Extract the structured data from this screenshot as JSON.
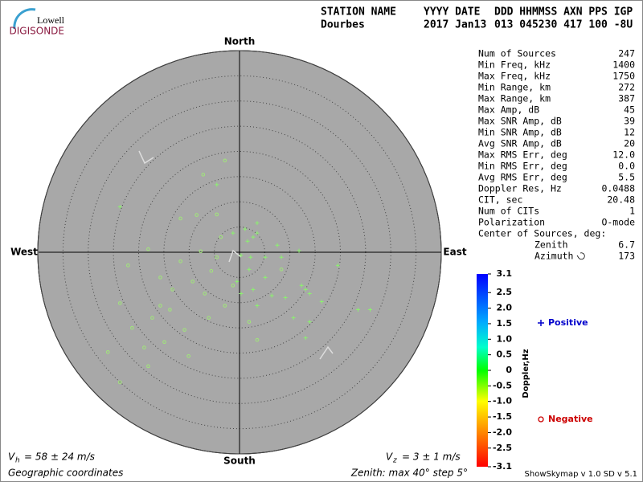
{
  "logo": {
    "top": "Lowell",
    "bottom": "DIGISONDE"
  },
  "header": {
    "labels": [
      "STATION NAME",
      "YYYY DATE",
      "DDD HHMMSS AXN PPS IGP"
    ],
    "values": [
      "Dourbes",
      "2017 Jan13",
      "013 045230 417 100 -8U"
    ]
  },
  "stats": {
    "rows": [
      [
        "Num of Sources",
        "247"
      ],
      [
        "Min Freq, kHz",
        "1400"
      ],
      [
        "Max Freq, kHz",
        "1750"
      ],
      [
        "Min Range, km",
        "272"
      ],
      [
        "Max Range, km",
        "387"
      ],
      [
        "Max Amp, dB",
        "45"
      ],
      [
        "Max SNR Amp, dB",
        "39"
      ],
      [
        "Min SNR Amp, dB",
        "12"
      ],
      [
        "Avg SNR Amp, dB",
        "20"
      ],
      [
        "Max RMS Err, deg",
        "12.0"
      ],
      [
        "Min RMS Err, deg",
        "0.0"
      ],
      [
        "Avg RMS Err, deg",
        "5.5"
      ],
      [
        "Doppler Res, Hz",
        "0.0488"
      ],
      [
        "CIT, sec",
        "20.48"
      ],
      [
        "Num of CITs",
        "1"
      ],
      [
        "Polarization",
        "O-mode"
      ]
    ],
    "center_title": "Center of Sources, deg:",
    "center": [
      [
        "Zenith",
        "6.7"
      ],
      [
        "Azimuth",
        "173"
      ]
    ]
  },
  "chart_data": {
    "type": "skymap",
    "directions": {
      "north": "North",
      "south": "South",
      "east": "East",
      "west": "West"
    },
    "rlim": [
      0,
      40
    ],
    "rticks": [
      5,
      10,
      15,
      20,
      25,
      30,
      35,
      40
    ],
    "series": [
      {
        "name": "Positive",
        "marker": "+",
        "color": "#8cf070",
        "label_color": "#0000cc",
        "x": [
          2.2,
          2.7,
          3.5,
          1.1,
          5.1,
          7.5,
          8.3,
          11.8,
          12.3,
          13.1,
          13.9,
          16.3,
          19.5,
          23.5,
          25.9,
          13.1,
          0.3,
          -0.5,
          1.9,
          2.7,
          3.5,
          6.4,
          9.1,
          -4.5,
          -23.7,
          3.5,
          1.6,
          0.3,
          -1.3,
          10.7,
          13.9,
          5.1
        ],
        "y": [
          -1.0,
          3.0,
          3.8,
          4.6,
          -1.0,
          1.4,
          -1.0,
          0.3,
          -6.6,
          -7.4,
          -8.2,
          -9.8,
          -2.6,
          -11.4,
          -11.4,
          -17.0,
          -8.2,
          -5.8,
          -3.4,
          -7.4,
          -10.6,
          -8.6,
          -9.0,
          13.4,
          9.0,
          5.8,
          2.2,
          -0.6,
          3.8,
          -13.0,
          -13.8,
          -5.0
        ]
      },
      {
        "name": "Negative",
        "marker": "o",
        "color": "#a0e878",
        "label_color": "#cc0000",
        "x": [
          -2.9,
          -7.2,
          -4.5,
          -8.5,
          -11.7,
          -18.1,
          -22.1,
          -15.7,
          -13.3,
          -23.7,
          -21.3,
          -26.1,
          -18.1,
          -23.7,
          -10.9,
          -10.1,
          -6.1,
          -2.9,
          -6.9,
          -9.3,
          -4.5,
          -7.7,
          -13.8,
          -17.3,
          -18.9,
          -14.9,
          -1.3,
          3.5,
          1.9,
          8.3,
          -3.7,
          -11.7,
          -5.6,
          -15.7
        ],
        "y": [
          18.2,
          15.4,
          7.5,
          7.4,
          6.7,
          0.6,
          -2.6,
          -5.0,
          -7.4,
          -10.1,
          -15.0,
          -19.8,
          -22.6,
          -25.8,
          -15.4,
          -20.6,
          -13.0,
          -10.6,
          -8.2,
          -5.8,
          -1.0,
          0.2,
          -11.4,
          -13.0,
          -18.9,
          -17.8,
          -6.6,
          -17.4,
          -13.8,
          -3.4,
          3.0,
          -1.8,
          -3.7,
          -10.6
        ]
      }
    ],
    "colorbar": {
      "label": "Doppler,Hz",
      "clim": [
        -3.1,
        3.1
      ],
      "cticks": [
        3.1,
        2.5,
        {
          "value": 2,
          "label": "2.0"
        },
        1.5,
        {
          "value": 1,
          "label": "1.0"
        },
        0.5,
        0,
        -0.5,
        {
          "value": -1,
          "label": "-1.0"
        },
        -1.5,
        {
          "value": -2,
          "label": "-2.0"
        },
        -2.5,
        -3.1
      ]
    },
    "vh": {
      "symbol": "V",
      "sub": "h",
      "text": "= 58 ± 24 m/s"
    },
    "vz": {
      "symbol": "V",
      "sub": "z",
      "text": "= 3 ± 1 m/s"
    }
  },
  "footer": {
    "left": "Geographic coordinates",
    "middle": "Zenith: max 40°  step 5°",
    "right": "ShowSkymap v 1.0  SD v 5.1"
  }
}
